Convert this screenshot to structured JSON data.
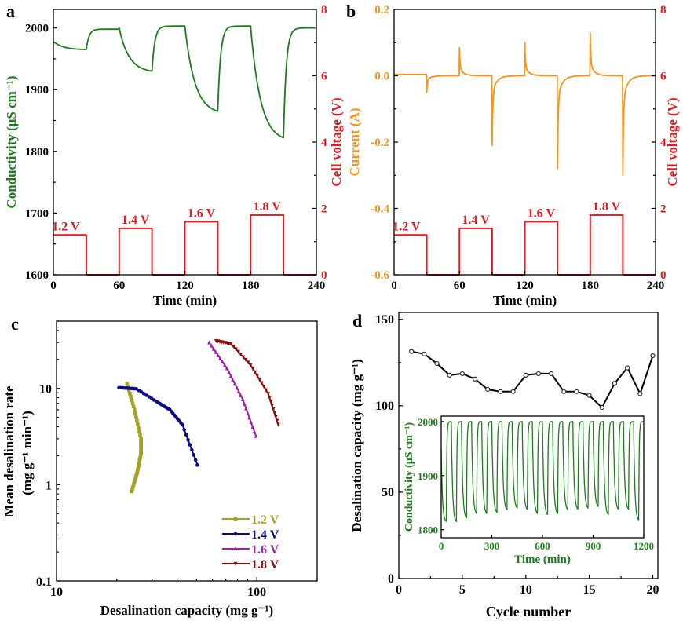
{
  "colors": {
    "green": "#1b7d1b",
    "red": "#e8181e",
    "orange": "#f7941d",
    "v12": "#a3a320",
    "v14": "#0a0a8c",
    "v16": "#a020a8",
    "v18": "#8c0a0a",
    "black": "#000000"
  },
  "chart_data": [
    {
      "panel": "a",
      "type": "line",
      "xlabel": "Time (min)",
      "ylabel": "Conductivity (μS cm⁻¹)",
      "ylabel_right": "Cell voltage (V)",
      "xlim": [
        0,
        240
      ],
      "xticks": [
        0,
        60,
        120,
        180,
        240
      ],
      "ylim": [
        1600,
        2030
      ],
      "yticks": [
        1600,
        1700,
        1800,
        1900,
        2000
      ],
      "ylim_right": [
        0,
        8
      ],
      "yticks_right": [
        0,
        2,
        4,
        6,
        8
      ],
      "conductivity_cycles": [
        {
          "t_start": 0,
          "start": 1978,
          "min": 1965,
          "peak": 1998
        },
        {
          "t_start": 60,
          "start": 2000,
          "min": 1930,
          "peak": 2003
        },
        {
          "t_start": 120,
          "start": 2003,
          "min": 1865,
          "peak": 2003
        },
        {
          "t_start": 180,
          "start": 2003,
          "min": 1822,
          "peak": 2000
        }
      ],
      "voltage_steps": [
        {
          "t0": 0,
          "t1": 30,
          "v": 1.2,
          "label": "1.2 V"
        },
        {
          "t0": 60,
          "t1": 90,
          "v": 1.4,
          "label": "1.4 V"
        },
        {
          "t0": 120,
          "t1": 150,
          "v": 1.6,
          "label": "1.6 V"
        },
        {
          "t0": 180,
          "t1": 210,
          "v": 1.8,
          "label": "1.8 V"
        }
      ]
    },
    {
      "panel": "b",
      "type": "line",
      "xlabel": "Time (min)",
      "ylabel": "Current (A)",
      "ylabel_right": "Cell voltage (V)",
      "xlim": [
        0,
        240
      ],
      "xticks": [
        0,
        60,
        120,
        180,
        240
      ],
      "ylim": [
        -0.6,
        0.2
      ],
      "yticks": [
        -0.6,
        -0.4,
        -0.2,
        0.0,
        0.2
      ],
      "ytick_labels": [
        "-0.6",
        "-0.4",
        "-0.2",
        "0.0",
        "0.2"
      ],
      "ylim_right": [
        0,
        8
      ],
      "yticks_right": [
        0,
        2,
        4,
        6,
        8
      ],
      "current_spikes": [
        {
          "t": 30,
          "peak": -0.05
        },
        {
          "t": 60,
          "peak": 0.085
        },
        {
          "t": 90,
          "peak": -0.21
        },
        {
          "t": 120,
          "peak": 0.1
        },
        {
          "t": 150,
          "peak": -0.28
        },
        {
          "t": 180,
          "peak": 0.13
        },
        {
          "t": 210,
          "peak": -0.3
        }
      ],
      "voltage_steps": [
        {
          "t0": 0,
          "t1": 30,
          "v": 1.2,
          "label": "1.2 V"
        },
        {
          "t0": 60,
          "t1": 90,
          "v": 1.4,
          "label": "1.4 V"
        },
        {
          "t0": 120,
          "t1": 150,
          "v": 1.6,
          "label": "1.6 V"
        },
        {
          "t0": 180,
          "t1": 210,
          "v": 1.8,
          "label": "1.8 V"
        }
      ]
    },
    {
      "panel": "c",
      "type": "line",
      "xlabel": "Desalination capacity (mg g⁻¹)",
      "ylabel": "Mean desalination rate",
      "ylabel2": "(mg g⁻¹ min⁻¹)",
      "xscale": "log",
      "yscale": "log",
      "xlim": [
        10,
        200
      ],
      "xticks": [
        10,
        100
      ],
      "xtick_labels": [
        "10",
        "100"
      ],
      "ylim": [
        0.1,
        50
      ],
      "yticks": [
        0.1,
        1,
        10
      ],
      "ytick_labels": [
        "0.1",
        "1",
        "10"
      ],
      "legend_position": "bottom-right",
      "series": [
        {
          "name": "1.2 V",
          "marker": "square",
          "x": [
            22.5,
            24.5,
            26.4,
            26.4,
            25.2,
            23.7
          ],
          "y": [
            11.2,
            6.0,
            3.0,
            2.1,
            1.3,
            0.85
          ]
        },
        {
          "name": "1.4 V",
          "marker": "circle",
          "x": [
            20.5,
            25,
            31.6,
            36.8,
            42.5,
            50.5
          ],
          "y": [
            10.2,
            9.9,
            7.3,
            6.0,
            4.2,
            1.6
          ]
        },
        {
          "name": "1.6 V",
          "marker": "triangle-up",
          "x": [
            57.8,
            70.9,
            85,
            99
          ],
          "y": [
            30,
            16.2,
            7.7,
            3.2
          ]
        },
        {
          "name": "1.8 V",
          "marker": "triangle-down",
          "x": [
            62.6,
            74.3,
            93,
            114,
            128
          ],
          "y": [
            31.2,
            29,
            17.5,
            8.8,
            4.2
          ]
        }
      ]
    },
    {
      "panel": "d",
      "type": "line",
      "xlabel": "Cycle number",
      "ylabel": "Desalination capacity (mg g⁻¹)",
      "xlim": [
        0,
        20.4
      ],
      "xticks": [
        0,
        5,
        10,
        15,
        20
      ],
      "ylim": [
        0,
        154
      ],
      "yticks": [
        0,
        50,
        100,
        150
      ],
      "x": [
        1,
        2,
        3,
        4,
        5,
        6,
        7,
        8,
        9,
        10,
        11,
        12,
        13,
        14,
        15,
        16,
        17,
        18,
        19,
        20
      ],
      "y": [
        131.4,
        130,
        124.5,
        117.7,
        118.6,
        115.5,
        109.5,
        108.2,
        108.2,
        117.7,
        118.6,
        118.6,
        108.2,
        108.2,
        106,
        99,
        113,
        122,
        107,
        129
      ],
      "inset": {
        "type": "line",
        "xlabel": "Time (min)",
        "ylabel": "Conductivity (μS cm⁻¹)",
        "xlim": [
          0,
          1200
        ],
        "xticks": [
          0,
          300,
          600,
          900,
          1200
        ],
        "ylim": [
          1785,
          2010
        ],
        "yticks": [
          1800,
          1900,
          2000
        ],
        "cycle_minutes": 60,
        "peak": 2000,
        "cycle_minima": [
          1815,
          1815,
          1822,
          1830,
          1830,
          1832,
          1837,
          1840,
          1838,
          1830,
          1828,
          1830,
          1837,
          1838,
          1840,
          1843,
          1828,
          1838,
          1838,
          1818
        ]
      }
    }
  ],
  "panel_letters": [
    "a",
    "b",
    "c",
    "d"
  ]
}
